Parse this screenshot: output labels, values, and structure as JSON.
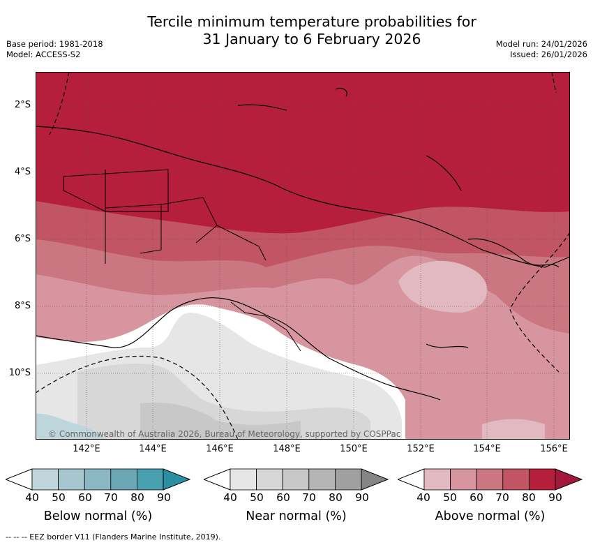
{
  "title_line1": "Tercile minimum temperature probabilities for",
  "title_line2": "31 January to 6 February 2026",
  "meta": {
    "base_period": "Base period: 1981-2018",
    "model": "Model: ACCESS-S2",
    "model_run": "Model run: 24/01/2026",
    "issued": "Issued: 26/01/2026"
  },
  "map": {
    "lat_labels": [
      "2°S",
      "4°S",
      "6°S",
      "8°S",
      "10°S"
    ],
    "lon_labels": [
      "142°E",
      "144°E",
      "146°E",
      "148°E",
      "150°E",
      "152°E",
      "154°E",
      "156°E"
    ],
    "copyright": "© Commonwealth of Australia 2026, Bureau of Meteorology, supported by COSPPac"
  },
  "legend": {
    "ticks": [
      "40",
      "50",
      "60",
      "70",
      "80",
      "90"
    ],
    "below": {
      "title": "Below normal (%)",
      "colors": [
        "#ffffff",
        "#bfd5dc",
        "#a6c7cf",
        "#8ab7c2",
        "#6aa6b4",
        "#479fb0",
        "#2b8fa3"
      ]
    },
    "near": {
      "title": "Near normal (%)",
      "colors": [
        "#ffffff",
        "#e6e6e6",
        "#d7d7d7",
        "#c8c8c8",
        "#b4b4b4",
        "#a0a0a0",
        "#858585"
      ]
    },
    "above": {
      "title": "Above normal (%)",
      "colors": [
        "#ffffff",
        "#e2b9c0",
        "#d7969f",
        "#cb7782",
        "#c15564",
        "#b51f3b",
        "#a3183a"
      ]
    }
  },
  "footnote": "--  --  -- EEZ border V11 (Flanders Marine Institute, 2019)."
}
